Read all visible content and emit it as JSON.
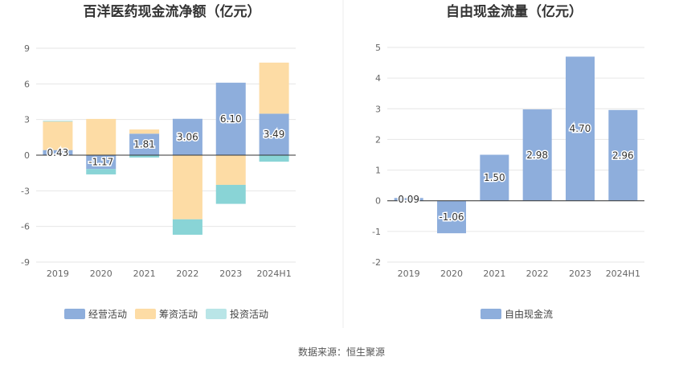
{
  "source": "数据来源：恒生聚源",
  "colors": {
    "operating": "#8eaedc",
    "financing": "#fddca5",
    "investing": "#89d4d6",
    "fcf": "#8eaedc",
    "legend_investing": "#b9e5e7",
    "grid": "#e6e6e6",
    "axis": "#333333"
  },
  "chart_data": [
    {
      "type": "bar",
      "stacked": true,
      "title": "百洋医药现金流净额（亿元）",
      "categories": [
        "2019",
        "2020",
        "2021",
        "2022",
        "2023",
        "2024H1"
      ],
      "ylim": [
        -9,
        9
      ],
      "yticks": [
        "9",
        "6",
        "3",
        "0",
        "-3",
        "-6",
        "-9"
      ],
      "ytick_values": [
        9,
        6,
        3,
        0,
        -3,
        -6,
        -9
      ],
      "legend_position": "bottom",
      "series": [
        {
          "name": "经营活动",
          "values": [
            0.43,
            -1.17,
            1.81,
            3.06,
            6.1,
            3.49
          ],
          "labels": [
            "0.43",
            "-1.17",
            "1.81",
            "3.06",
            "6.10",
            "3.49"
          ]
        },
        {
          "name": "筹资活动",
          "values": [
            2.4,
            3.05,
            0.35,
            -5.4,
            -2.5,
            4.3
          ]
        },
        {
          "name": "投资活动",
          "values": [
            0.05,
            -0.45,
            -0.2,
            -1.3,
            -1.6,
            -0.55
          ]
        }
      ]
    },
    {
      "type": "bar",
      "title": "自由现金流量（亿元）",
      "categories": [
        "2019",
        "2020",
        "2021",
        "2022",
        "2023",
        "2024H1"
      ],
      "ylim": [
        -2,
        5
      ],
      "yticks": [
        "5",
        "4",
        "3",
        "2",
        "1",
        "0",
        "-1",
        "-2"
      ],
      "ytick_values": [
        5,
        4,
        3,
        2,
        1,
        0,
        -1,
        -2
      ],
      "legend_position": "bottom",
      "series": [
        {
          "name": "自由现金流",
          "values": [
            0.09,
            -1.06,
            1.5,
            2.98,
            4.7,
            2.96
          ],
          "labels": [
            "0.09",
            "-1.06",
            "1.50",
            "2.98",
            "4.70",
            "2.96"
          ]
        }
      ]
    }
  ]
}
